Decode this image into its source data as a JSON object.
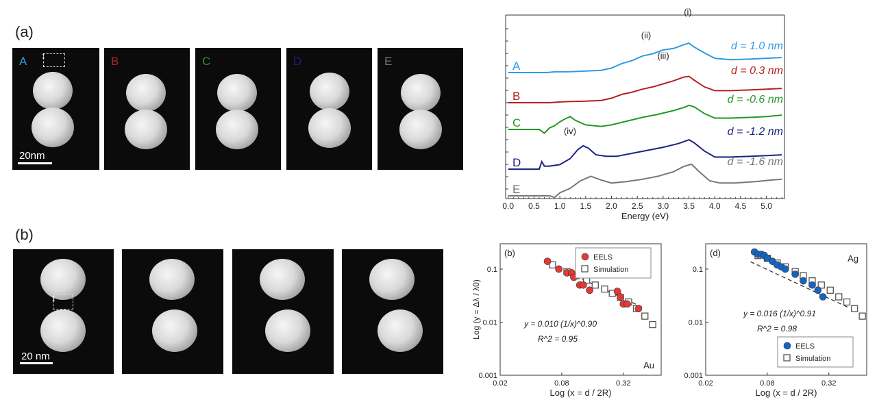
{
  "panel_a": {
    "label": "(a)",
    "frames": [
      {
        "letter": "A",
        "color": "#2f9be0"
      },
      {
        "letter": "B",
        "color": "#b22222"
      },
      {
        "letter": "C",
        "color": "#229922"
      },
      {
        "letter": "D",
        "color": "#1a237e"
      },
      {
        "letter": "E",
        "color": "#777777"
      }
    ],
    "scale_label": "20nm"
  },
  "panel_b": {
    "label": "(b)",
    "scale_label": "20 nm"
  },
  "chart_data": [
    {
      "type": "line",
      "xlabel": "Energy (eV)",
      "xlim": [
        -0.05,
        5.35
      ],
      "x_ticks": [
        "0.0",
        "0.5",
        "1.0",
        "1.5",
        "2.0",
        "2.5",
        "3.0",
        "3.5",
        "4.0",
        "4.5",
        "5.0"
      ],
      "series": [
        {
          "name": "A",
          "color": "#2f9be0",
          "label": "d = 1.0 nm",
          "x": [
            0.0,
            0.75,
            0.9,
            1.2,
            1.5,
            1.8,
            2.0,
            2.2,
            2.4,
            2.6,
            2.8,
            3.0,
            3.2,
            3.4,
            3.5,
            3.6,
            3.8,
            4.0,
            4.3,
            4.7,
            5.0,
            5.3
          ],
          "y": [
            0.0,
            0.0,
            0.05,
            0.06,
            0.1,
            0.15,
            0.3,
            0.6,
            0.8,
            1.1,
            1.25,
            1.5,
            1.6,
            1.85,
            1.95,
            1.7,
            1.3,
            0.95,
            0.85,
            0.9,
            0.95,
            1.0
          ]
        },
        {
          "name": "B",
          "color": "#b22222",
          "label": "d = 0.3 nm",
          "x": [
            0.0,
            0.7,
            0.8,
            1.0,
            1.2,
            1.5,
            1.8,
            2.0,
            2.2,
            2.4,
            2.6,
            2.8,
            3.0,
            3.2,
            3.4,
            3.5,
            3.6,
            3.8,
            4.0,
            4.3,
            4.7,
            5.0,
            5.3
          ],
          "y": [
            0.0,
            0.0,
            0.0,
            0.05,
            0.08,
            0.1,
            0.15,
            0.3,
            0.55,
            0.7,
            0.9,
            1.05,
            1.25,
            1.45,
            1.7,
            1.75,
            1.5,
            1.05,
            0.8,
            0.8,
            0.85,
            0.9,
            0.95
          ]
        },
        {
          "name": "C",
          "color": "#229922",
          "label": "d = -0.6 nm",
          "x": [
            0.0,
            0.6,
            0.7,
            0.8,
            0.9,
            1.0,
            1.1,
            1.2,
            1.3,
            1.5,
            1.8,
            2.0,
            2.3,
            2.6,
            2.9,
            3.2,
            3.4,
            3.5,
            3.6,
            3.8,
            4.0,
            4.3,
            4.7,
            5.0,
            5.3
          ],
          "y": [
            0.0,
            0.0,
            -0.25,
            0.1,
            0.25,
            0.5,
            0.7,
            0.85,
            0.6,
            0.3,
            0.2,
            0.3,
            0.55,
            0.8,
            1.0,
            1.25,
            1.45,
            1.6,
            1.5,
            1.05,
            0.75,
            0.75,
            0.8,
            0.85,
            0.95
          ]
        },
        {
          "name": "D",
          "color": "#1a237e",
          "label": "d = -1.2 nm",
          "x": [
            0.0,
            0.6,
            0.65,
            0.7,
            0.8,
            1.0,
            1.2,
            1.35,
            1.45,
            1.55,
            1.7,
            1.9,
            2.1,
            2.4,
            2.7,
            3.0,
            3.3,
            3.5,
            3.6,
            3.8,
            4.0,
            4.3,
            4.7,
            5.0,
            5.3
          ],
          "y": [
            0.0,
            0.0,
            0.5,
            0.2,
            0.2,
            0.3,
            0.7,
            1.3,
            1.55,
            1.4,
            0.95,
            0.85,
            0.85,
            1.05,
            1.25,
            1.45,
            1.7,
            1.95,
            1.75,
            1.2,
            0.8,
            0.8,
            0.85,
            0.9,
            0.95
          ]
        },
        {
          "name": "E",
          "color": "#777777",
          "label": "d = -1.6 nm",
          "x": [
            0.0,
            0.8,
            0.9,
            1.0,
            1.2,
            1.4,
            1.6,
            1.8,
            2.0,
            2.3,
            2.6,
            2.9,
            3.2,
            3.4,
            3.55,
            3.7,
            3.9,
            4.1,
            4.4,
            4.8,
            5.1,
            5.3
          ],
          "y": [
            0.0,
            0.0,
            -0.1,
            0.2,
            0.5,
            1.0,
            1.3,
            1.05,
            0.85,
            0.95,
            1.1,
            1.3,
            1.6,
            1.95,
            2.1,
            1.6,
            1.0,
            0.85,
            0.85,
            0.95,
            1.05,
            1.1
          ]
        }
      ],
      "annotations": [
        "(i)",
        "(ii)",
        "(iii)",
        "(iv)"
      ]
    },
    {
      "type": "scatter",
      "log_scale": true,
      "panel": "(b)",
      "metal": "Au",
      "xlabel": "Log (x = d / 2R)",
      "ylabel": "Log (y = Δλ / λ0)",
      "x_ticks": [
        "0.02",
        "0.08",
        "0.32"
      ],
      "y_ticks": [
        "0.001",
        "0.01",
        "0.1"
      ],
      "xlim": [
        0.02,
        0.75
      ],
      "ylim": [
        0.001,
        0.3
      ],
      "eqn": "y = 0.010 (1/x)^0.90",
      "r2": "R^2 = 0.95",
      "series": [
        {
          "name": "EELS",
          "color": "#e53935",
          "x": [
            0.058,
            0.075,
            0.09,
            0.1,
            0.105,
            0.12,
            0.13,
            0.15,
            0.28,
            0.3,
            0.32,
            0.35,
            0.45
          ],
          "y": [
            0.14,
            0.1,
            0.085,
            0.085,
            0.07,
            0.05,
            0.05,
            0.04,
            0.038,
            0.03,
            0.022,
            0.022,
            0.018
          ]
        },
        {
          "name": "Simulation",
          "color": "#666666",
          "x": [
            0.065,
            0.09,
            0.11,
            0.14,
            0.17,
            0.21,
            0.25,
            0.3,
            0.36,
            0.43,
            0.52,
            0.62
          ],
          "y": [
            0.12,
            0.09,
            0.075,
            0.062,
            0.05,
            0.042,
            0.035,
            0.029,
            0.024,
            0.018,
            0.013,
            0.009
          ]
        }
      ]
    },
    {
      "type": "scatter",
      "log_scale": true,
      "panel": "(d)",
      "metal": "Ag",
      "xlabel": "Log (x = d / 2R)",
      "x_ticks": [
        "0.02",
        "0.08",
        "0.32"
      ],
      "y_ticks": [
        "0.001",
        "0.01",
        "0.1"
      ],
      "xlim": [
        0.02,
        0.75
      ],
      "ylim": [
        0.001,
        0.3
      ],
      "eqn": "y = 0.016 (1/x)^0.91",
      "r2": "R^2 = 0.98",
      "series": [
        {
          "name": "EELS",
          "color": "#1565c0",
          "x": [
            0.06,
            0.065,
            0.07,
            0.075,
            0.08,
            0.09,
            0.1,
            0.11,
            0.12,
            0.15,
            0.18,
            0.22,
            0.25,
            0.28
          ],
          "y": [
            0.21,
            0.19,
            0.19,
            0.18,
            0.16,
            0.14,
            0.12,
            0.11,
            0.1,
            0.08,
            0.06,
            0.05,
            0.04,
            0.03
          ]
        },
        {
          "name": "Simulation",
          "color": "#666666",
          "x": [
            0.065,
            0.08,
            0.1,
            0.12,
            0.15,
            0.18,
            0.22,
            0.27,
            0.33,
            0.4,
            0.48,
            0.57,
            0.68
          ],
          "y": [
            0.18,
            0.16,
            0.13,
            0.11,
            0.09,
            0.075,
            0.06,
            0.05,
            0.04,
            0.03,
            0.024,
            0.018,
            0.013
          ]
        }
      ]
    }
  ]
}
